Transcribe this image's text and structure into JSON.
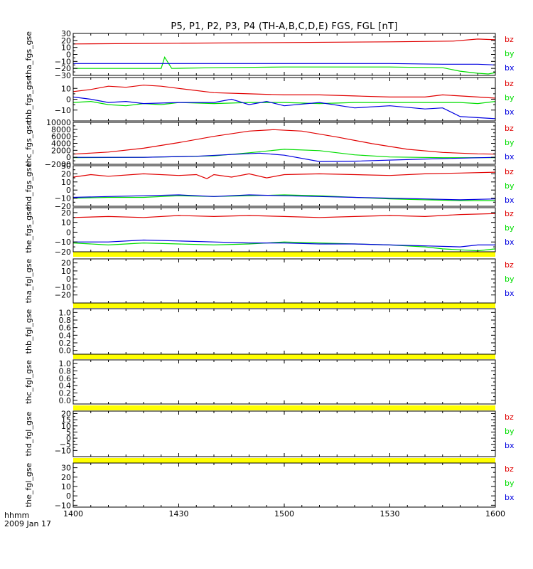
{
  "chart_data": {
    "type": "line",
    "title": "P5, P1, P2, P3, P4 (TH-A,B,C,D,E) FGS, FGL [nT]",
    "colors": {
      "bz": "#e00000",
      "by": "#00dd00",
      "bx": "#0000e0",
      "flag": "#ffff00"
    },
    "time_axis": {
      "start_min": 840,
      "end_min": 960,
      "ticks": [
        {
          "v": 840,
          "label": "1400"
        },
        {
          "v": 870,
          "label": "1430"
        },
        {
          "v": 900,
          "label": "1500"
        },
        {
          "v": 930,
          "label": "1530"
        },
        {
          "v": 960,
          "label": "1600"
        }
      ],
      "left_label": "hhmm",
      "date_label": "2009 Jan 17"
    },
    "panels": [
      {
        "ylabel": "tha_fgs_gse",
        "ylim": [
          -30,
          30
        ],
        "yticks": [
          {
            "v": 30,
            "label": "30"
          },
          {
            "v": 20,
            "label": "20"
          },
          {
            "v": 10,
            "label": "10"
          },
          {
            "v": 0,
            "label": "0"
          },
          {
            "v": -10,
            "label": "−10"
          },
          {
            "v": -20,
            "label": "−20"
          },
          {
            "v": -30,
            "label": "−30"
          }
        ],
        "legend": [
          "bz",
          "by",
          "bx"
        ],
        "series": [
          {
            "name": "bz",
            "x": [
              840,
              870,
              900,
              930,
              948,
              955,
              960
            ],
            "y": [
              15,
              16,
              17,
              18,
              19,
              22,
              21
            ]
          },
          {
            "name": "by",
            "x": [
              840,
              865,
              866,
              868,
              880,
              900,
              930,
              945,
              950,
              955,
              958,
              960
            ],
            "y": [
              -20,
              -20,
              -4,
              -20,
              -19,
              -18,
              -18,
              -19,
              -24,
              -27,
              -28,
              -26
            ]
          },
          {
            "name": "bx",
            "x": [
              840,
              870,
              900,
              930,
              945,
              955,
              960
            ],
            "y": [
              -13,
              -13,
              -13,
              -13,
              -14,
              -14,
              -15
            ]
          }
        ]
      },
      {
        "ylabel": "thb_fgs_gse",
        "ylim": [
          -20,
          20
        ],
        "yticks": [
          {
            "v": 10,
            "label": "10"
          },
          {
            "v": 0,
            "label": "0"
          },
          {
            "v": -10,
            "label": "−10"
          }
        ],
        "legend": [
          "bz",
          "by",
          "bx"
        ],
        "series": [
          {
            "name": "bz",
            "x": [
              840,
              845,
              850,
              855,
              860,
              865,
              870,
              880,
              890,
              900,
              910,
              920,
              930,
              940,
              945,
              950,
              955,
              960
            ],
            "y": [
              7,
              9,
              12,
              11,
              13,
              12,
              10,
              6,
              5,
              4,
              4,
              3,
              2,
              2,
              4,
              3,
              2,
              1
            ]
          },
          {
            "name": "by",
            "x": [
              840,
              845,
              850,
              855,
              860,
              865,
              870,
              880,
              890,
              900,
              910,
              920,
              930,
              940,
              950,
              955,
              960
            ],
            "y": [
              -3,
              -2,
              -5,
              -6,
              -4,
              -5,
              -3,
              -4,
              -3,
              -3,
              -4,
              -3,
              -3,
              -3,
              -3,
              -4,
              -2
            ]
          },
          {
            "name": "bx",
            "x": [
              840,
              845,
              850,
              855,
              860,
              870,
              880,
              885,
              890,
              895,
              900,
              910,
              920,
              930,
              940,
              945,
              950,
              955,
              960
            ],
            "y": [
              2,
              0,
              -3,
              -2,
              -4,
              -3,
              -3,
              0,
              -5,
              -2,
              -6,
              -3,
              -8,
              -6,
              -9,
              -8,
              -16,
              -17,
              -18
            ]
          }
        ]
      },
      {
        "ylabel": "thc_fgs_gse",
        "ylim": [
          -2000,
          10000
        ],
        "yticks": [
          {
            "v": 10000,
            "label": "10000"
          },
          {
            "v": 8000,
            "label": "8000"
          },
          {
            "v": 6000,
            "label": "6000"
          },
          {
            "v": 4000,
            "label": "4000"
          },
          {
            "v": 2000,
            "label": "2000"
          },
          {
            "v": 0,
            "label": "0"
          },
          {
            "v": -2000,
            "label": "−2000"
          }
        ],
        "legend": [
          "bz",
          "by",
          "bx"
        ],
        "series": [
          {
            "name": "bz",
            "x": [
              840,
              850,
              860,
              870,
              880,
              890,
              897,
              905,
              915,
              925,
              935,
              945,
              955,
              960
            ],
            "y": [
              900,
              1500,
              2600,
              4200,
              6000,
              7500,
              7900,
              7500,
              5800,
              3900,
              2300,
              1400,
              1000,
              900
            ]
          },
          {
            "name": "by",
            "x": [
              840,
              860,
              880,
              890,
              900,
              910,
              920,
              930,
              945,
              960
            ],
            "y": [
              -100,
              0,
              400,
              1300,
              2300,
              1900,
              700,
              100,
              -100,
              -100
            ]
          },
          {
            "name": "bx",
            "x": [
              840,
              860,
              875,
              885,
              893,
              900,
              910,
              920,
              940,
              960
            ],
            "y": [
              0,
              0,
              300,
              800,
              1200,
              600,
              -1200,
              -1100,
              -500,
              0
            ]
          }
        ]
      },
      {
        "ylabel": "thd_fgs_gse",
        "ylim": [
          -20,
          30
        ],
        "yticks": [
          {
            "v": 30,
            "label": "30"
          },
          {
            "v": 20,
            "label": "20"
          },
          {
            "v": 10,
            "label": "10"
          },
          {
            "v": 0,
            "label": "0"
          },
          {
            "v": -10,
            "label": "−10"
          },
          {
            "v": -20,
            "label": "−20"
          }
        ],
        "legend": [
          "bz",
          "by",
          "bx"
        ],
        "series": [
          {
            "name": "bz",
            "x": [
              840,
              845,
              850,
              860,
              870,
              875,
              878,
              880,
              885,
              890,
              895,
              900,
              910,
              920,
              930,
              940,
              950,
              960
            ],
            "y": [
              16,
              19,
              17,
              20,
              18,
              19,
              14,
              19,
              16,
              20,
              15,
              19,
              20,
              19,
              18,
              20,
              21,
              22
            ]
          },
          {
            "name": "by",
            "x": [
              840,
              850,
              860,
              870,
              880,
              890,
              900,
              910,
              920,
              930,
              940,
              950,
              960
            ],
            "y": [
              -10,
              -9,
              -9,
              -7,
              -8,
              -7,
              -6,
              -7,
              -9,
              -11,
              -12,
              -13,
              -13
            ]
          },
          {
            "name": "bx",
            "x": [
              840,
              850,
              860,
              870,
              880,
              890,
              900,
              910,
              920,
              930,
              940,
              950,
              960
            ],
            "y": [
              -9,
              -8,
              -7,
              -6,
              -8,
              -6,
              -7,
              -8,
              -9,
              -10,
              -11,
              -12,
              -11
            ]
          }
        ]
      },
      {
        "ylabel": "the_fgs_gse",
        "ylim": [
          -20,
          25
        ],
        "yticks": [
          {
            "v": 20,
            "label": "20"
          },
          {
            "v": 10,
            "label": "10"
          },
          {
            "v": 0,
            "label": "0"
          },
          {
            "v": -10,
            "label": "−10"
          },
          {
            "v": -20,
            "label": "−20"
          }
        ],
        "legend": [
          "bz",
          "by",
          "bx"
        ],
        "series": [
          {
            "name": "bz",
            "x": [
              840,
              850,
              860,
              870,
              880,
              890,
              900,
              910,
              920,
              930,
              940,
              950,
              960
            ],
            "y": [
              15,
              16,
              15,
              17,
              16,
              17,
              16,
              15,
              16,
              17,
              16,
              18,
              19
            ]
          },
          {
            "name": "by",
            "x": [
              840,
              850,
              860,
              870,
              880,
              890,
              900,
              910,
              920,
              930,
              940,
              945,
              950,
              955,
              960
            ],
            "y": [
              -11,
              -13,
              -11,
              -12,
              -13,
              -12,
              -10,
              -11,
              -12,
              -13,
              -15,
              -17,
              -18,
              -19,
              -17
            ]
          },
          {
            "name": "bx",
            "x": [
              840,
              850,
              860,
              870,
              880,
              890,
              900,
              910,
              920,
              930,
              940,
              950,
              955,
              960
            ],
            "y": [
              -10,
              -10,
              -8,
              -9,
              -10,
              -11,
              -11,
              -12,
              -12,
              -13,
              -14,
              -15,
              -13,
              -13
            ]
          }
        ]
      },
      {
        "ylabel": "tha_fgl_gse",
        "ylim": [
          -30,
          25
        ],
        "yticks": [
          {
            "v": 20,
            "label": "20"
          },
          {
            "v": 10,
            "label": "10"
          },
          {
            "v": 0,
            "label": "0"
          },
          {
            "v": -10,
            "label": "−10"
          },
          {
            "v": -20,
            "label": "−20"
          }
        ],
        "legend": [
          "bz",
          "by",
          "bx"
        ],
        "series": []
      },
      {
        "ylabel": "thb_fgl_gse",
        "ylim": [
          -0.1,
          1.1
        ],
        "yticks": [
          {
            "v": 1.0,
            "label": "1.0"
          },
          {
            "v": 0.8,
            "label": "0.8"
          },
          {
            "v": 0.6,
            "label": "0.6"
          },
          {
            "v": 0.4,
            "label": "0.4"
          },
          {
            "v": 0.2,
            "label": "0.2"
          },
          {
            "v": 0.0,
            "label": "0.0"
          }
        ],
        "legend": [],
        "series": []
      },
      {
        "ylabel": "thc_fgl_gse",
        "ylim": [
          -0.1,
          1.1
        ],
        "yticks": [
          {
            "v": 1.0,
            "label": "1.0"
          },
          {
            "v": 0.8,
            "label": "0.8"
          },
          {
            "v": 0.6,
            "label": "0.6"
          },
          {
            "v": 0.4,
            "label": "0.4"
          },
          {
            "v": 0.2,
            "label": "0.2"
          },
          {
            "v": 0.0,
            "label": "0.0"
          }
        ],
        "legend": [],
        "series": []
      },
      {
        "ylabel": "thd_fgl_gse",
        "ylim": [
          -15,
          22
        ],
        "yticks": [
          {
            "v": 20,
            "label": "20"
          },
          {
            "v": 15,
            "label": "15"
          },
          {
            "v": 10,
            "label": "10"
          },
          {
            "v": 5,
            "label": "5"
          },
          {
            "v": 0,
            "label": "0"
          },
          {
            "v": -5,
            "label": "−5"
          },
          {
            "v": -10,
            "label": "−10"
          }
        ],
        "legend": [
          "bz",
          "by",
          "bx"
        ],
        "series": []
      },
      {
        "ylabel": "the_fgl_gse",
        "ylim": [
          -12,
          35
        ],
        "yticks": [
          {
            "v": 30,
            "label": "30"
          },
          {
            "v": 20,
            "label": "20"
          },
          {
            "v": 10,
            "label": "10"
          },
          {
            "v": 0,
            "label": "0"
          },
          {
            "v": -10,
            "label": "−10"
          }
        ],
        "legend": [
          "bz",
          "by",
          "bx"
        ],
        "series": []
      }
    ]
  }
}
